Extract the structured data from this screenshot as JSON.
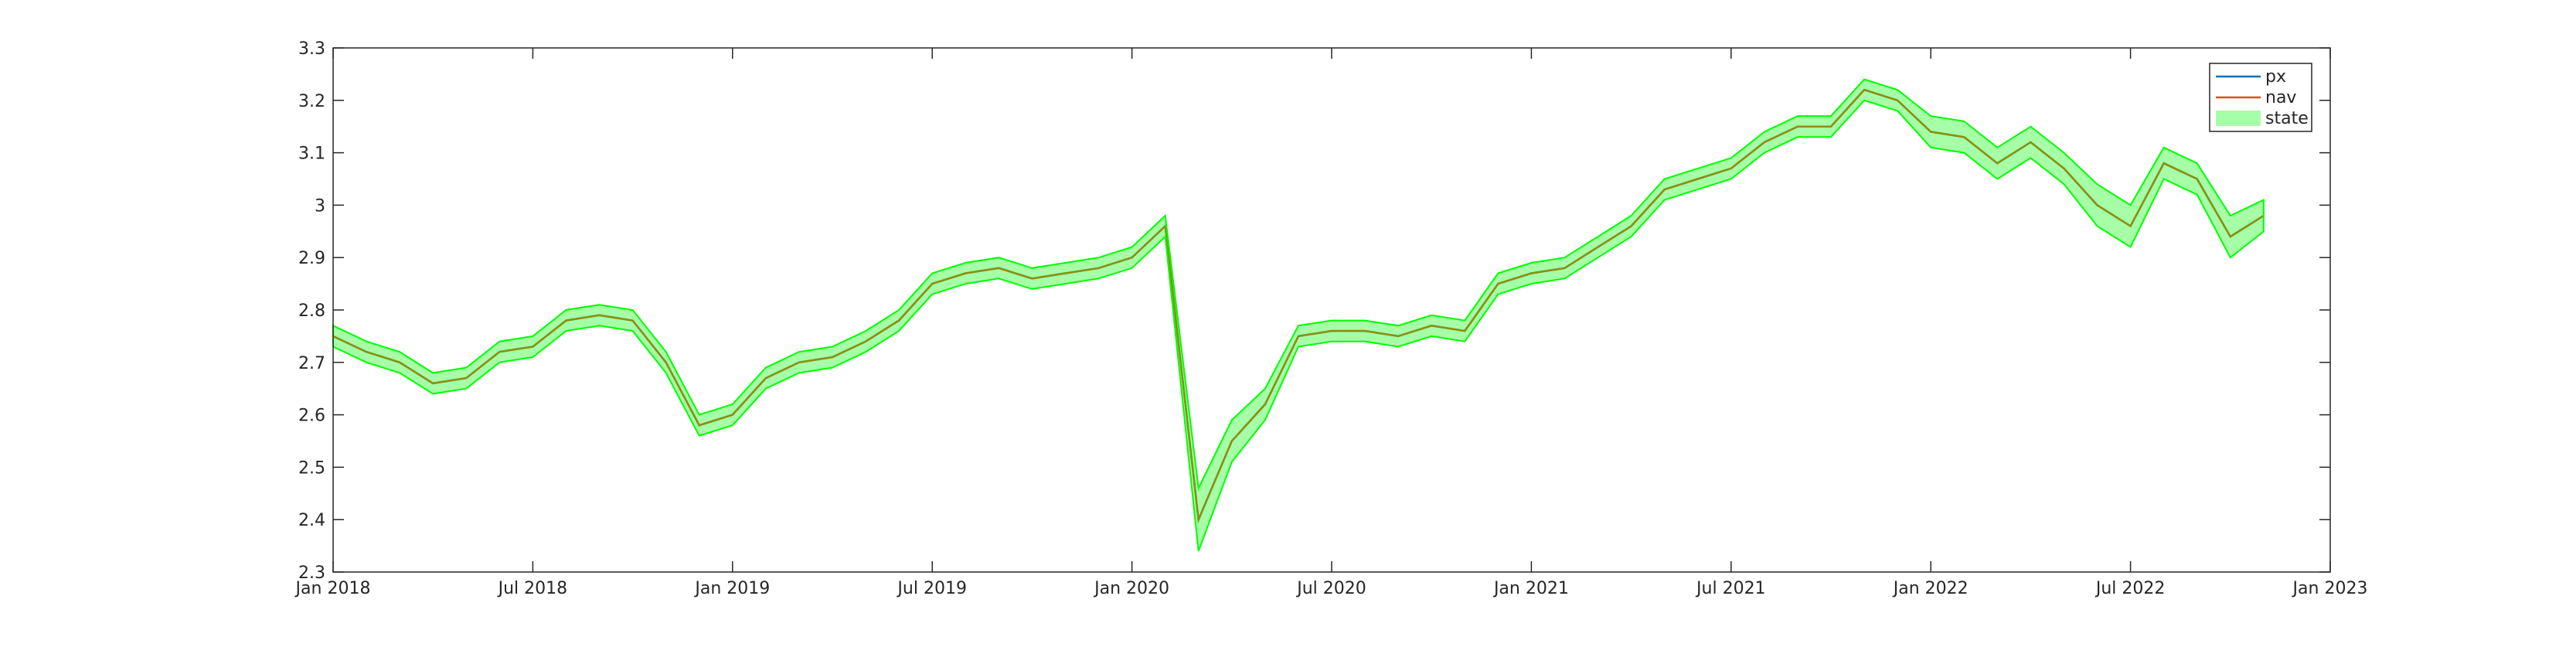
{
  "chart_data": {
    "type": "line",
    "legend_location": "northeast",
    "x": [
      "2018-01",
      "2018-02",
      "2018-03",
      "2018-04",
      "2018-05",
      "2018-06",
      "2018-07",
      "2018-08",
      "2018-09",
      "2018-10",
      "2018-11",
      "2018-12",
      "2019-01",
      "2019-02",
      "2019-03",
      "2019-04",
      "2019-05",
      "2019-06",
      "2019-07",
      "2019-08",
      "2019-09",
      "2019-10",
      "2019-11",
      "2019-12",
      "2020-01",
      "2020-02",
      "2020-03",
      "2020-04",
      "2020-05",
      "2020-06",
      "2020-07",
      "2020-08",
      "2020-09",
      "2020-10",
      "2020-11",
      "2020-12",
      "2021-01",
      "2021-02",
      "2021-03",
      "2021-04",
      "2021-05",
      "2021-06",
      "2021-07",
      "2021-08",
      "2021-09",
      "2021-10",
      "2021-11",
      "2021-12",
      "2022-01",
      "2022-02",
      "2022-03",
      "2022-04",
      "2022-05",
      "2022-06",
      "2022-07",
      "2022-08",
      "2022-09",
      "2022-10",
      "2022-11"
    ],
    "series": [
      {
        "name": "px",
        "color": "#0072bd",
        "values": [
          2.75,
          2.72,
          2.7,
          2.66,
          2.67,
          2.72,
          2.73,
          2.78,
          2.79,
          2.78,
          2.7,
          2.58,
          2.6,
          2.67,
          2.7,
          2.71,
          2.74,
          2.78,
          2.85,
          2.87,
          2.88,
          2.86,
          2.87,
          2.88,
          2.9,
          2.96,
          2.4,
          2.55,
          2.62,
          2.75,
          2.76,
          2.76,
          2.75,
          2.77,
          2.76,
          2.85,
          2.87,
          2.88,
          2.92,
          2.96,
          3.03,
          3.05,
          3.07,
          3.12,
          3.15,
          3.15,
          3.22,
          3.2,
          3.14,
          3.13,
          3.08,
          3.12,
          3.07,
          3.0,
          2.96,
          3.08,
          3.05,
          2.94,
          2.98
        ]
      },
      {
        "name": "nav",
        "color": "#d95319",
        "values": [
          2.75,
          2.72,
          2.7,
          2.66,
          2.67,
          2.72,
          2.73,
          2.78,
          2.79,
          2.78,
          2.7,
          2.58,
          2.6,
          2.67,
          2.7,
          2.71,
          2.74,
          2.78,
          2.85,
          2.87,
          2.88,
          2.86,
          2.87,
          2.88,
          2.9,
          2.96,
          2.4,
          2.55,
          2.62,
          2.75,
          2.76,
          2.76,
          2.75,
          2.77,
          2.76,
          2.85,
          2.87,
          2.88,
          2.92,
          2.96,
          3.03,
          3.05,
          3.07,
          3.12,
          3.15,
          3.15,
          3.22,
          3.2,
          3.14,
          3.13,
          3.08,
          3.12,
          3.07,
          3.0,
          2.96,
          3.08,
          3.05,
          2.94,
          2.98
        ]
      },
      {
        "name": "state",
        "color": "#00ff00",
        "lower": [
          2.73,
          2.7,
          2.68,
          2.64,
          2.65,
          2.7,
          2.71,
          2.76,
          2.77,
          2.76,
          2.68,
          2.56,
          2.58,
          2.65,
          2.68,
          2.69,
          2.72,
          2.76,
          2.83,
          2.85,
          2.86,
          2.84,
          2.85,
          2.86,
          2.88,
          2.94,
          2.34,
          2.51,
          2.59,
          2.73,
          2.74,
          2.74,
          2.73,
          2.75,
          2.74,
          2.83,
          2.85,
          2.86,
          2.9,
          2.94,
          3.01,
          3.03,
          3.05,
          3.1,
          3.13,
          3.13,
          3.2,
          3.18,
          3.11,
          3.1,
          3.05,
          3.09,
          3.04,
          2.96,
          2.92,
          3.05,
          3.02,
          2.9,
          2.95
        ],
        "upper": [
          2.77,
          2.74,
          2.72,
          2.68,
          2.69,
          2.74,
          2.75,
          2.8,
          2.81,
          2.8,
          2.72,
          2.6,
          2.62,
          2.69,
          2.72,
          2.73,
          2.76,
          2.8,
          2.87,
          2.89,
          2.9,
          2.88,
          2.89,
          2.9,
          2.92,
          2.98,
          2.46,
          2.59,
          2.65,
          2.77,
          2.78,
          2.78,
          2.77,
          2.79,
          2.78,
          2.87,
          2.89,
          2.9,
          2.94,
          2.98,
          3.05,
          3.07,
          3.09,
          3.14,
          3.17,
          3.17,
          3.24,
          3.22,
          3.17,
          3.16,
          3.11,
          3.15,
          3.1,
          3.04,
          3.0,
          3.11,
          3.08,
          2.98,
          3.01
        ]
      }
    ],
    "xlim": [
      "2018-01",
      "2023-01"
    ],
    "xticks": [
      {
        "value": "2018-01",
        "label": "Jan 2018"
      },
      {
        "value": "2018-07",
        "label": "Jul 2018"
      },
      {
        "value": "2019-01",
        "label": "Jan 2019"
      },
      {
        "value": "2019-07",
        "label": "Jul 2019"
      },
      {
        "value": "2020-01",
        "label": "Jan 2020"
      },
      {
        "value": "2020-07",
        "label": "Jul 2020"
      },
      {
        "value": "2021-01",
        "label": "Jan 2021"
      },
      {
        "value": "2021-07",
        "label": "Jul 2021"
      },
      {
        "value": "2022-01",
        "label": "Jan 2022"
      },
      {
        "value": "2022-07",
        "label": "Jul 2022"
      },
      {
        "value": "2023-01",
        "label": "Jan 2023"
      }
    ],
    "ylim": [
      2.3,
      3.3
    ],
    "yticks": [
      2.3,
      2.4,
      2.5,
      2.6,
      2.7,
      2.8,
      2.9,
      3,
      3.1,
      3.2,
      3.3
    ]
  }
}
